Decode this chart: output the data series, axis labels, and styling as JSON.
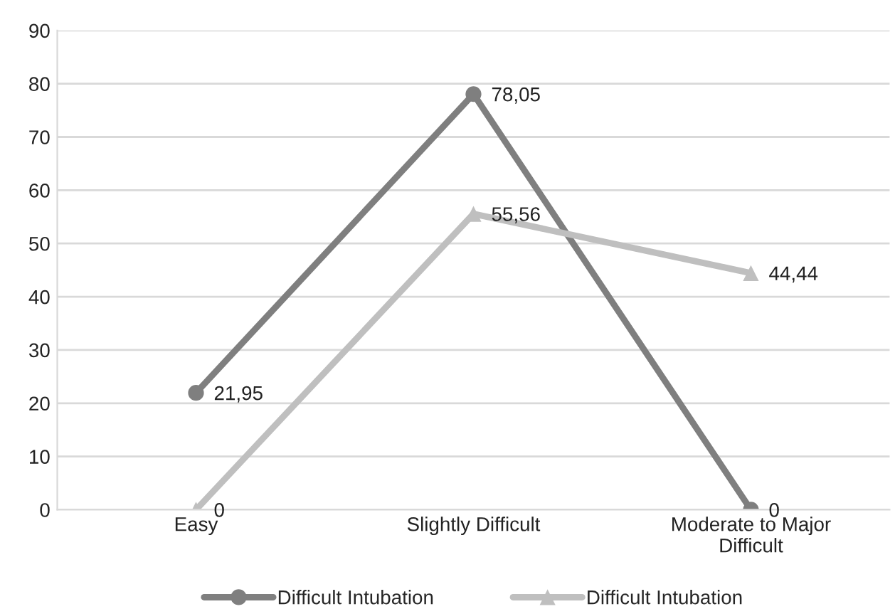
{
  "chart_data": {
    "type": "line",
    "categories": [
      "Easy",
      "Slightly Difficult",
      "Moderate to Major Difficult"
    ],
    "series": [
      {
        "name": "Difficult Intubation",
        "color": "#7f7f7f",
        "marker": "circle",
        "values": [
          21.95,
          78.05,
          0
        ],
        "value_labels": [
          "21,95",
          "78,05",
          "0"
        ]
      },
      {
        "name": "Difficult Intubation",
        "color": "#bfbfbf",
        "marker": "triangle",
        "values": [
          0,
          55.56,
          44.44
        ],
        "value_labels": [
          "0",
          "55,56",
          "44,44"
        ]
      }
    ],
    "ylim": [
      0,
      90
    ],
    "yticks": [
      0,
      10,
      20,
      30,
      40,
      50,
      60,
      70,
      80,
      90
    ],
    "grid": "y",
    "legend": "bottom",
    "line_style": "solid"
  }
}
